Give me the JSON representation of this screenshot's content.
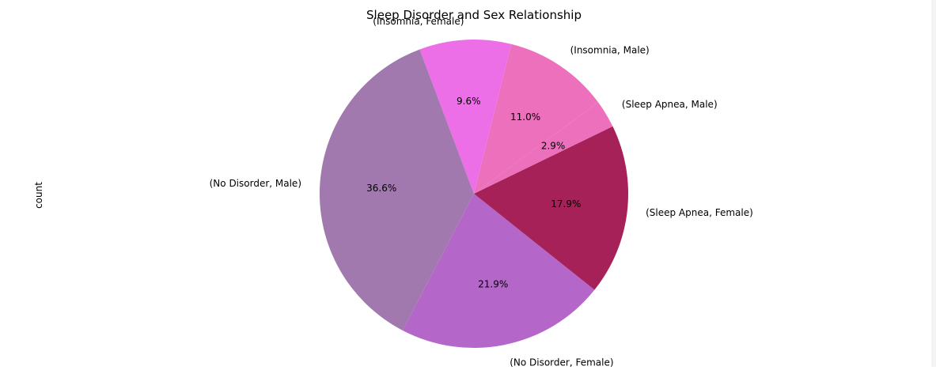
{
  "chart_data": {
    "type": "pie",
    "title": "Sleep Disorder and Sex Relationship",
    "ylabel": "count",
    "slices": [
      {
        "label": "(Insomnia, Female)",
        "percent": 9.6,
        "pct_label": "9.6%",
        "color": "#ec6fe8"
      },
      {
        "label": "(No Disorder, Male)",
        "percent": 36.6,
        "pct_label": "36.6%",
        "color": "#a279ae"
      },
      {
        "label": "(No Disorder, Female)",
        "percent": 21.9,
        "pct_label": "21.9%",
        "color": "#b467c8"
      },
      {
        "label": "(Sleep Apnea, Female)",
        "percent": 17.9,
        "pct_label": "17.9%",
        "color": "#a52157"
      },
      {
        "label": "(Sleep Apnea, Male)",
        "percent": 2.9,
        "pct_label": "2.9%",
        "color": "#ec70bb"
      },
      {
        "label": "(Insomnia, Male)",
        "percent": 11.0,
        "pct_label": "11.0%",
        "color": "#ec70bb"
      }
    ]
  }
}
